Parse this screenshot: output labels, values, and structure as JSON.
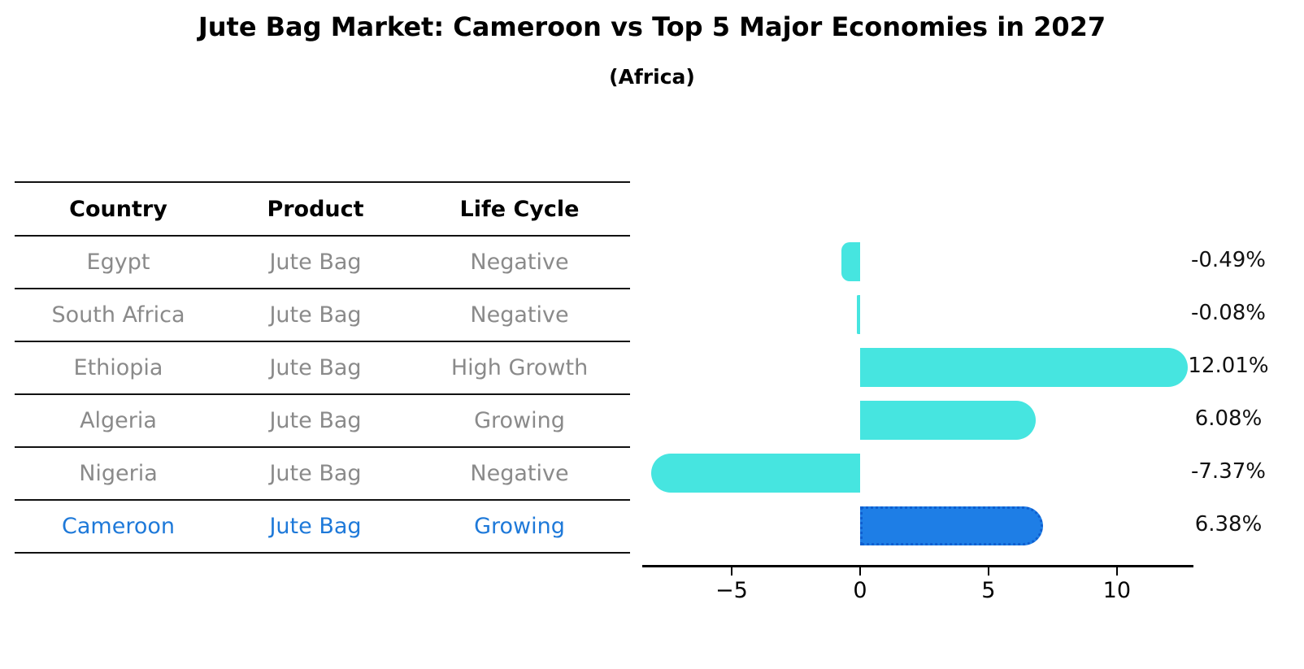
{
  "header": {
    "title": "Jute Bag Market: Cameroon vs Top 5 Major Economies in 2027",
    "subtitle": "(Africa)"
  },
  "table": {
    "columns": [
      "Country",
      "Product",
      "Life Cycle"
    ],
    "rows": [
      {
        "country": "Egypt",
        "product": "Jute Bag",
        "life_cycle": "Negative",
        "highlight": false
      },
      {
        "country": "South Africa",
        "product": "Jute Bag",
        "life_cycle": "Negative",
        "highlight": false
      },
      {
        "country": "Ethiopia",
        "product": "Jute Bag",
        "life_cycle": "High Growth",
        "highlight": false
      },
      {
        "country": "Algeria",
        "product": "Jute Bag",
        "life_cycle": "Growing",
        "highlight": false
      },
      {
        "country": "Nigeria",
        "product": "Jute Bag",
        "life_cycle": "Negative",
        "highlight": false
      },
      {
        "country": "Cameroon",
        "product": "Jute Bag",
        "life_cycle": "Growing",
        "highlight": true
      }
    ]
  },
  "chart_data": {
    "type": "bar",
    "orientation": "horizontal",
    "title": "Jute Bag Market: Cameroon vs Top 5 Major Economies in 2027",
    "subtitle": "(Africa)",
    "categories": [
      "Egypt",
      "South Africa",
      "Ethiopia",
      "Algeria",
      "Nigeria",
      "Cameroon"
    ],
    "values": [
      -0.49,
      -0.08,
      12.01,
      6.08,
      -7.37,
      6.38
    ],
    "value_labels": [
      "-0.49%",
      "-0.08%",
      "12.01%",
      "6.08%",
      "-7.37%",
      "6.38%"
    ],
    "highlight_index": 5,
    "x_ticks": [
      -5,
      0,
      5,
      10
    ],
    "x_tick_labels": [
      "−5",
      "0",
      "5",
      "10"
    ],
    "xlim": [
      -8.48,
      12.98
    ],
    "grid": false,
    "legend": "none",
    "colors": {
      "default_bar": "#46E5E0",
      "highlight_bar": "#1E7EE6",
      "highlight_border": "#0F5FD0",
      "highlight_text": "#1E79D9",
      "table_text": "#8a8a8a",
      "axis": "#000000",
      "value_text": "#111111"
    }
  }
}
